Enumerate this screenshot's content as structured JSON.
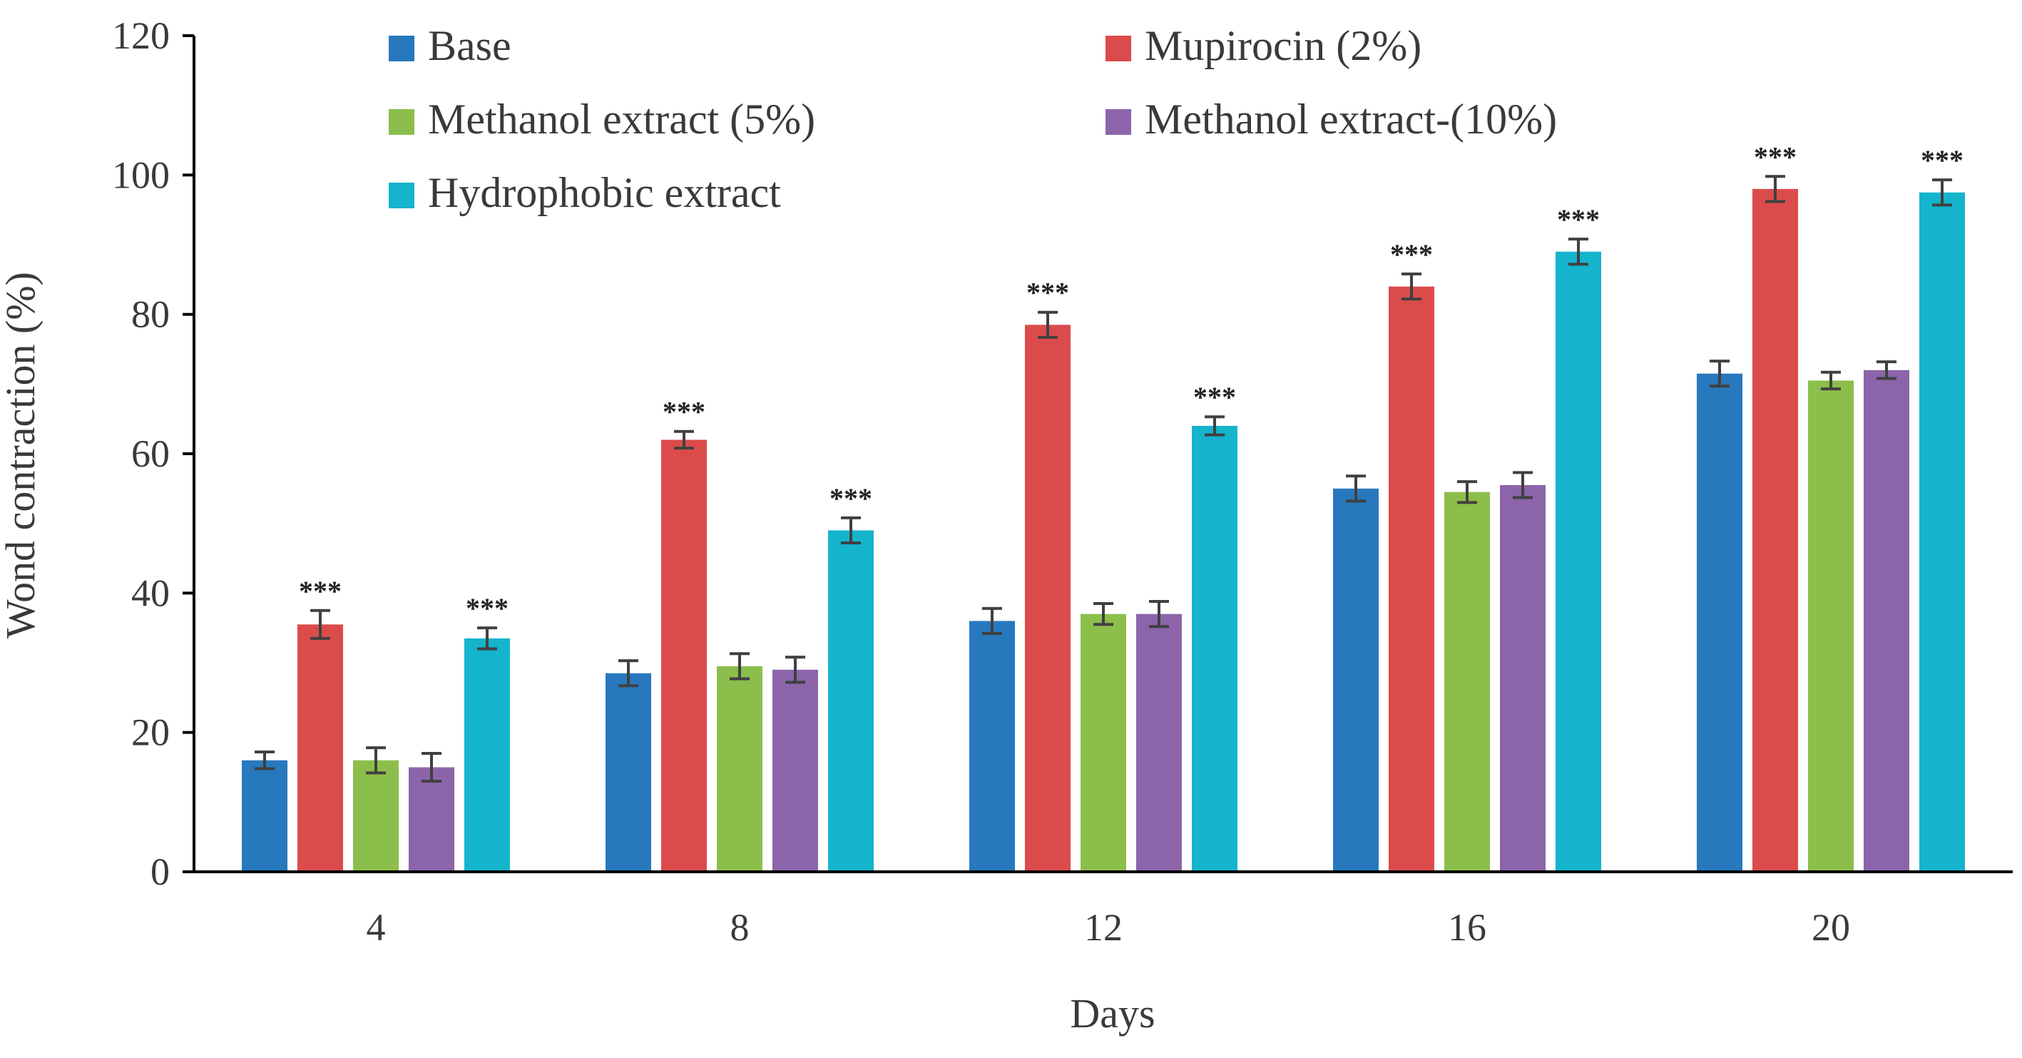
{
  "chart_data": {
    "type": "bar",
    "title": "",
    "xlabel": "Days",
    "ylabel": "Wond contraction (%)",
    "ylim": [
      0,
      120
    ],
    "yticks": [
      0,
      20,
      40,
      60,
      80,
      100,
      120
    ],
    "categories": [
      "4",
      "8",
      "12",
      "16",
      "20"
    ],
    "grid": false,
    "legend_position": "top",
    "significance_mark": "***",
    "series": [
      {
        "name": "Base",
        "color": "#2878be",
        "values": [
          16,
          28.5,
          36,
          55,
          71.5
        ],
        "errors": [
          1.2,
          1.8,
          1.8,
          1.8,
          1.8
        ],
        "significant": [
          false,
          false,
          false,
          false,
          false
        ]
      },
      {
        "name": "Mupirocin (2%)",
        "color": "#dc4b4b",
        "values": [
          35.5,
          62,
          78.5,
          84,
          98
        ],
        "errors": [
          2,
          1.2,
          1.8,
          1.8,
          1.8
        ],
        "significant": [
          true,
          true,
          true,
          true,
          true
        ]
      },
      {
        "name": "Methanol extract (5%)",
        "color": "#8cbe4b",
        "values": [
          16,
          29.5,
          37,
          54.5,
          70.5
        ],
        "errors": [
          1.8,
          1.8,
          1.5,
          1.5,
          1.2
        ],
        "significant": [
          false,
          false,
          false,
          false,
          false
        ]
      },
      {
        "name": "Methanol extract-(10%)",
        "color": "#8c64aa",
        "values": [
          15,
          29,
          37,
          55.5,
          72
        ],
        "errors": [
          2,
          1.8,
          1.8,
          1.8,
          1.2
        ],
        "significant": [
          false,
          false,
          false,
          false,
          false
        ]
      },
      {
        "name": "Hydrophobic extract",
        "color": "#14b4cd",
        "values": [
          33.5,
          49,
          64,
          89,
          97.5
        ],
        "errors": [
          1.5,
          1.8,
          1.3,
          1.8,
          1.8
        ],
        "significant": [
          true,
          true,
          true,
          true,
          true
        ]
      }
    ]
  }
}
